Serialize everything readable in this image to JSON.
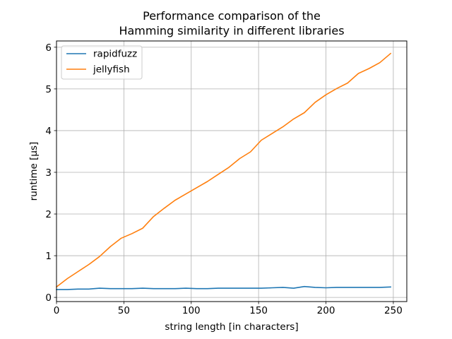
{
  "chart_data": {
    "type": "line",
    "title": [
      "Performance comparison of the",
      "Hamming similarity in different libraries"
    ],
    "xlabel": "string length [in characters]",
    "ylabel": "runtime [µs]",
    "xlim": [
      0,
      260
    ],
    "ylim": [
      -0.1,
      6.15
    ],
    "xticks": [
      0,
      50,
      100,
      150,
      200,
      250
    ],
    "yticks": [
      0,
      1,
      2,
      3,
      4,
      5,
      6
    ],
    "grid": true,
    "legend_position": "top-left",
    "x": [
      0,
      8,
      16,
      24,
      32,
      40,
      48,
      56,
      64,
      72,
      80,
      88,
      96,
      104,
      112,
      120,
      128,
      136,
      144,
      152,
      160,
      168,
      176,
      184,
      192,
      200,
      208,
      216,
      224,
      232,
      240,
      248
    ],
    "series": [
      {
        "name": "rapidfuzz",
        "color": "#1f77b4",
        "values": [
          0.19,
          0.19,
          0.2,
          0.2,
          0.22,
          0.21,
          0.21,
          0.21,
          0.22,
          0.21,
          0.21,
          0.21,
          0.22,
          0.21,
          0.21,
          0.22,
          0.22,
          0.22,
          0.22,
          0.22,
          0.23,
          0.24,
          0.22,
          0.26,
          0.24,
          0.23,
          0.24,
          0.24,
          0.24,
          0.24,
          0.24,
          0.25
        ]
      },
      {
        "name": "jellyfish",
        "color": "#ff7f0e",
        "values": [
          0.25,
          0.45,
          0.62,
          0.79,
          0.98,
          1.22,
          1.42,
          1.53,
          1.66,
          1.94,
          2.14,
          2.33,
          2.48,
          2.63,
          2.78,
          2.95,
          3.12,
          3.33,
          3.49,
          3.77,
          3.93,
          4.09,
          4.28,
          4.43,
          4.68,
          4.86,
          5.01,
          5.14,
          5.37,
          5.49,
          5.63,
          5.85
        ]
      }
    ]
  }
}
